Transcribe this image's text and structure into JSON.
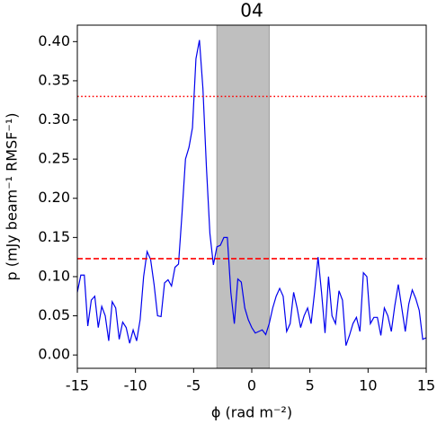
{
  "chart_data": {
    "type": "line",
    "title": "04",
    "xlabel": "ϕ (rad m⁻²)",
    "ylabel": "p (mJy beam⁻¹ RMSF⁻¹)",
    "xlim": [
      -15,
      15
    ],
    "ylim": [
      -0.017,
      0.421
    ],
    "xticks": [
      -15,
      -10,
      -5,
      0,
      5,
      10,
      15
    ],
    "yticks": [
      {
        "value": 0,
        "label": "0.00"
      },
      {
        "value": 0.05,
        "label": "0.05"
      },
      {
        "value": 0.1,
        "label": "0.10"
      },
      {
        "value": 0.15,
        "label": "0.15"
      },
      {
        "value": 0.2,
        "label": "0.20"
      },
      {
        "value": 0.25,
        "label": "0.25"
      },
      {
        "value": 0.3,
        "label": "0.30"
      },
      {
        "value": 0.35,
        "label": "0.35"
      },
      {
        "value": 0.4,
        "label": "0.40"
      }
    ],
    "x": [
      -15,
      -14.7,
      -14.4,
      -14.1,
      -13.8,
      -13.5,
      -13.2,
      -12.9,
      -12.6,
      -12.3,
      -12,
      -11.7,
      -11.4,
      -11.1,
      -10.8,
      -10.5,
      -10.2,
      -9.9,
      -9.6,
      -9.3,
      -9,
      -8.7,
      -8.4,
      -8.1,
      -7.8,
      -7.5,
      -7.2,
      -6.9,
      -6.6,
      -6.3,
      -6,
      -5.7,
      -5.4,
      -5.1,
      -4.8,
      -4.5,
      -4.2,
      -3.9,
      -3.6,
      -3.3,
      -3,
      -2.7,
      -2.4,
      -2.1,
      -1.8,
      -1.5,
      -1.2,
      -0.9,
      -0.6,
      -0.3,
      0,
      0.3,
      0.6,
      0.9,
      1.2,
      1.5,
      1.8,
      2.1,
      2.4,
      2.7,
      3,
      3.3,
      3.6,
      3.9,
      4.2,
      4.5,
      4.8,
      5.1,
      5.4,
      5.7,
      6,
      6.3,
      6.6,
      6.9,
      7.2,
      7.5,
      7.8,
      8.1,
      8.4,
      8.7,
      9,
      9.3,
      9.6,
      9.9,
      10.2,
      10.5,
      10.8,
      11.1,
      11.4,
      11.7,
      12,
      12.3,
      12.6,
      12.9,
      13.2,
      13.5,
      13.8,
      14.1,
      14.4,
      14.7,
      15
    ],
    "series": [
      {
        "color": "#0000ee",
        "values": [
          0.08,
          0.102,
          0.102,
          0.037,
          0.07,
          0.075,
          0.035,
          0.062,
          0.05,
          0.018,
          0.068,
          0.06,
          0.02,
          0.042,
          0.035,
          0.015,
          0.032,
          0.018,
          0.045,
          0.1,
          0.132,
          0.122,
          0.09,
          0.05,
          0.049,
          0.092,
          0.096,
          0.088,
          0.112,
          0.116,
          0.18,
          0.25,
          0.265,
          0.29,
          0.378,
          0.402,
          0.34,
          0.24,
          0.155,
          0.115,
          0.138,
          0.14,
          0.15,
          0.15,
          0.08,
          0.04,
          0.097,
          0.093,
          0.06,
          0.045,
          0.035,
          0.028,
          0.03,
          0.032,
          0.026,
          0.04,
          0.06,
          0.075,
          0.085,
          0.075,
          0.03,
          0.04,
          0.08,
          0.06,
          0.035,
          0.05,
          0.06,
          0.04,
          0.08,
          0.125,
          0.08,
          0.028,
          0.1,
          0.05,
          0.04,
          0.082,
          0.07,
          0.012,
          0.025,
          0.04,
          0.048,
          0.03,
          0.105,
          0.1,
          0.04,
          0.048,
          0.048,
          0.025,
          0.06,
          0.05,
          0.03,
          0.063,
          0.09,
          0.06,
          0.03,
          0.065,
          0.083,
          0.072,
          0.057,
          0.02,
          0.022
        ]
      }
    ],
    "hlines": [
      {
        "value": 0.33,
        "color": "#ff0000",
        "style": "dotted"
      },
      {
        "value": 0.123,
        "color": "#ff0000",
        "style": "dashed"
      }
    ],
    "spans": [
      {
        "xmin": -3,
        "xmax": 1.5,
        "color": "#bfbfbf"
      }
    ]
  }
}
